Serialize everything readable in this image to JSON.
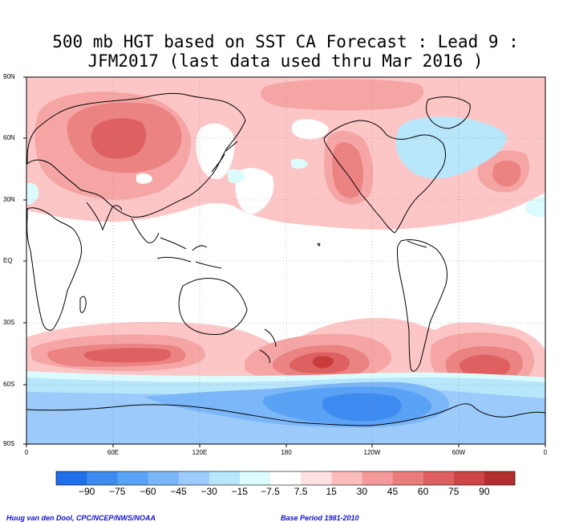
{
  "title_line1": "500 mb HGT based on SST CA Forecast : Lead 9 :",
  "title_line2": "JFM2017 (last data used thru Mar 2016 )",
  "lat_labels": [
    "90N",
    "60N",
    "30N",
    "EQ",
    "30S",
    "60S",
    "90S"
  ],
  "lon_labels": [
    "0",
    "60E",
    "120E",
    "180",
    "120W",
    "60W",
    "0"
  ],
  "colorbar": {
    "colors": [
      "#1f6fe8",
      "#3d8bf0",
      "#5aa2f5",
      "#7bb7f8",
      "#9ccbfb",
      "#b8e6fb",
      "#dcfbfd",
      "#ffffff",
      "#fde0e0",
      "#fbbcbc",
      "#f59a9a",
      "#ec7b7b",
      "#e06060",
      "#cf4646",
      "#b32e2e"
    ],
    "labels": [
      "−90",
      "−75",
      "−60",
      "−45",
      "−30",
      "−15",
      "−7.5",
      "7.5",
      "15",
      "30",
      "45",
      "60",
      "75",
      "90"
    ]
  },
  "credit_left": "Huug van den Dool, CPC/NCEP/NWS/NOAA",
  "credit_right": "Base Period 1981-2010",
  "fills": {
    "lightpink": "#fcc6c6",
    "pink": "#f6a5a5",
    "redpink": "#eb8383",
    "red": "#de6060",
    "deepred": "#c83c3c",
    "lightblue": "#b8e6fb",
    "blue1": "#9ccbfb",
    "blue2": "#7bb7f8",
    "blue3": "#5aa2f5",
    "blue4": "#3d8bf0",
    "paleblue": "#dcfbfd"
  }
}
